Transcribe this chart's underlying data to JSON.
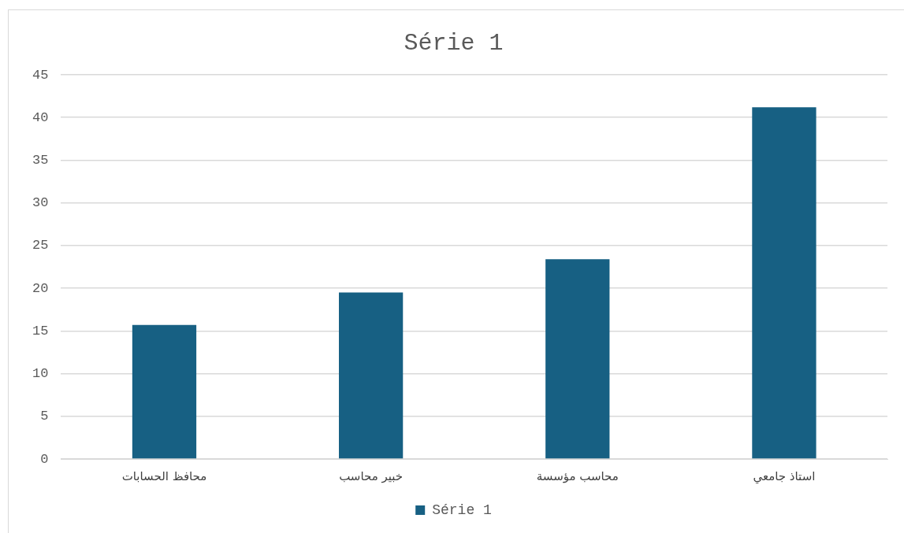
{
  "chart_data": {
    "type": "bar",
    "title": "Série 1",
    "categories": [
      "محافظ الحسابات",
      "خبير محاسب",
      "محاسب مؤسسة",
      "استاذ جامعي"
    ],
    "series": [
      {
        "name": "Série 1",
        "color": "#176083",
        "values": [
          15.7,
          19.5,
          23.4,
          41.2
        ]
      }
    ],
    "ylim": [
      0,
      45
    ],
    "yticks": [
      0,
      5,
      10,
      15,
      20,
      25,
      30,
      35,
      40,
      45
    ],
    "grid": "y",
    "legend": "bottom"
  }
}
